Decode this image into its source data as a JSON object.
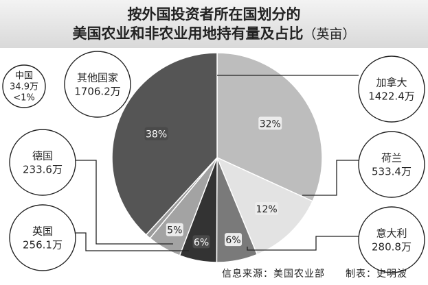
{
  "title_line1": "按外国投资者所在国划分的",
  "title_line2": "美国农业和非农业用地持有量及占比",
  "unit": "（英亩）",
  "footer": {
    "source": "信息来源：美国农业部",
    "author": "制表：史明波"
  },
  "chart_data": {
    "type": "pie",
    "title": "按外国投资者所在国划分的美国农业和非农业用地持有量及占比（英亩）",
    "slices": [
      {
        "name": "加拿大",
        "value": 1422.4,
        "value_label": "1422.4万",
        "pct_label": "32%",
        "color": "#bdbdbd"
      },
      {
        "name": "荷兰",
        "value": 533.4,
        "value_label": "533.4万",
        "pct_label": "12%",
        "color": "#e3e3e3"
      },
      {
        "name": "意大利",
        "value": 280.8,
        "value_label": "280.8万",
        "pct_label": "6%",
        "color": "#7a7a7a"
      },
      {
        "name": "英国",
        "value": 256.1,
        "value_label": "256.1万",
        "pct_label": "6%",
        "color": "#333333"
      },
      {
        "name": "德国",
        "value": 233.6,
        "value_label": "233.6万",
        "pct_label": "5%",
        "color": "#a3a3a3"
      },
      {
        "name": "中国",
        "value": 34.9,
        "value_label": "34.9万",
        "pct_label": "<1%",
        "color": "#9a9a9a"
      },
      {
        "name": "其他国家",
        "value": 1706.2,
        "value_label": "1706.2万",
        "pct_label": "38%",
        "color": "#555555"
      }
    ]
  }
}
